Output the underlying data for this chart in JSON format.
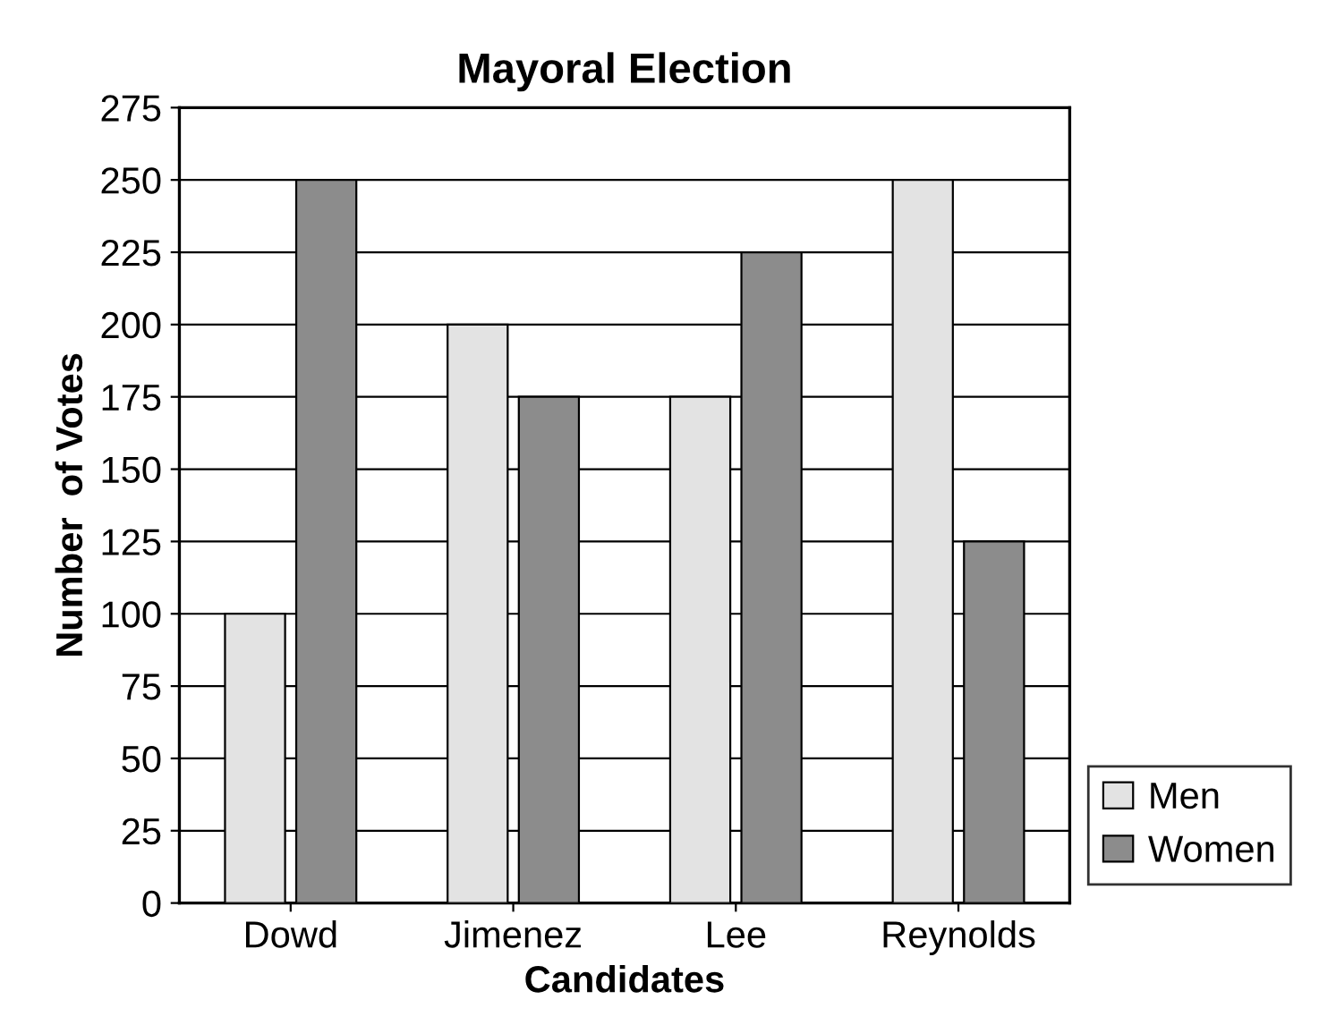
{
  "chart_data": {
    "type": "bar",
    "title": "Mayoral Election",
    "xlabel": "Candidates",
    "ylabel": "Number  of Votes",
    "categories": [
      "Dowd",
      "Jimenez",
      "Lee",
      "Reynolds"
    ],
    "series": [
      {
        "name": "Men",
        "color": "#e3e3e3",
        "values": [
          100,
          200,
          175,
          250
        ]
      },
      {
        "name": "Women",
        "color": "#8c8c8c",
        "values": [
          250,
          175,
          225,
          125
        ]
      }
    ],
    "ylim": [
      0,
      275
    ],
    "yticks": [
      0,
      25,
      50,
      75,
      100,
      125,
      150,
      175,
      200,
      225,
      250,
      275
    ],
    "grid": "y",
    "legend": "bottom right"
  }
}
